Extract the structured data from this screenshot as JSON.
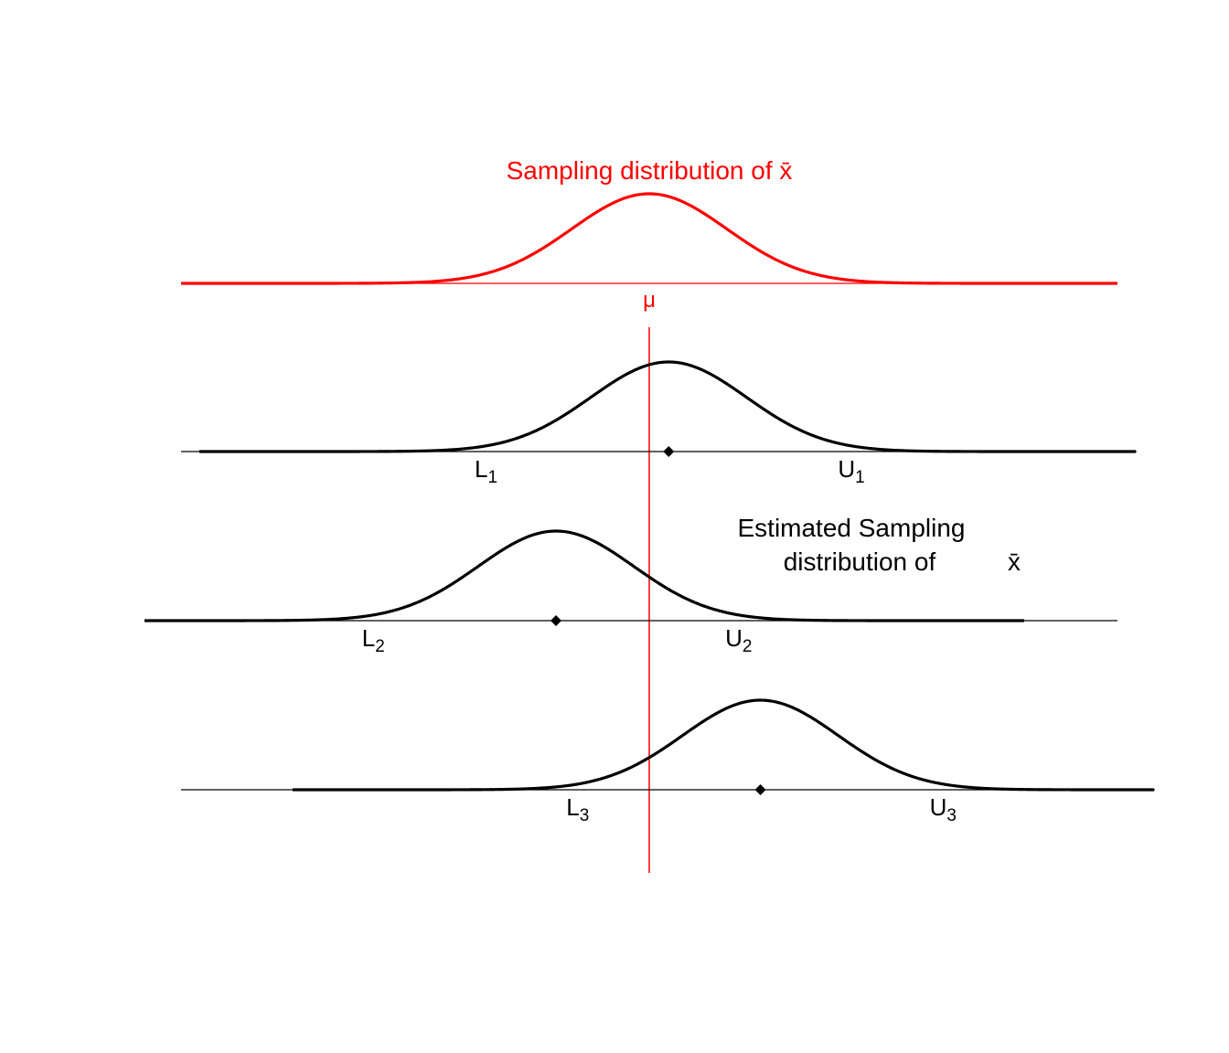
{
  "title": "Sampling distribution of x̄",
  "mu_label": "μ",
  "estimated_label_line1": "Estimated Sampling",
  "estimated_label_line2": "distribution of",
  "estimated_label_xbar": "x̄",
  "colors": {
    "true": "#ff0000",
    "estimated": "#000000"
  },
  "true_distribution": {
    "center": 0,
    "sd": 1
  },
  "samples": [
    {
      "center": 0.25,
      "sd": 1,
      "L": "L",
      "U": "U",
      "sub": "1",
      "halfwidth": 2.35
    },
    {
      "center": -1.2,
      "sd": 1,
      "L": "L",
      "U": "U",
      "sub": "2",
      "halfwidth": 2.35
    },
    {
      "center": 1.43,
      "sd": 1,
      "L": "L",
      "U": "U",
      "sub": "3",
      "halfwidth": 2.35
    }
  ]
}
